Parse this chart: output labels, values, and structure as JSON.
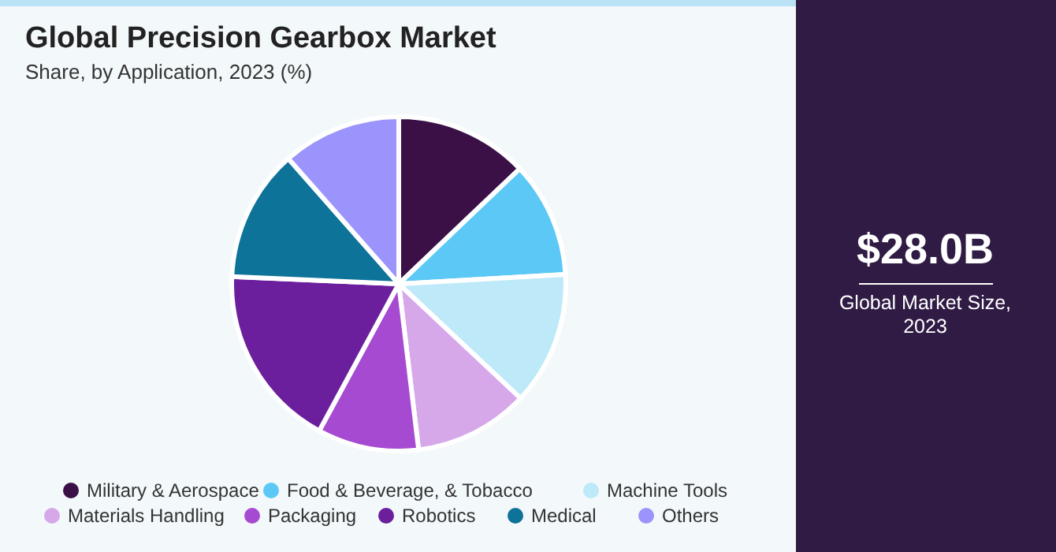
{
  "chart_data": {
    "type": "pie",
    "title": "Global Precision Gearbox Market",
    "subtitle": "Share, by Application, 2023 (%)",
    "categories": [
      "Military & Aerospace",
      "Food & Beverage, & Tobacco",
      "Machine Tools",
      "Materials Handling",
      "Packaging",
      "Robotics",
      "Medical",
      "Others"
    ],
    "values": [
      12.9,
      11.2,
      12.9,
      11.1,
      9.8,
      17.8,
      12.8,
      11.5
    ],
    "colors": [
      "#3a1047",
      "#5bc8f5",
      "#bde9f9",
      "#d6a8ea",
      "#a64bd1",
      "#6b1f9c",
      "#0d7399",
      "#9b94fc"
    ],
    "legend": "bottom",
    "annotations": [
      "$28.0B",
      "Global Market Size, 2023"
    ]
  }
}
